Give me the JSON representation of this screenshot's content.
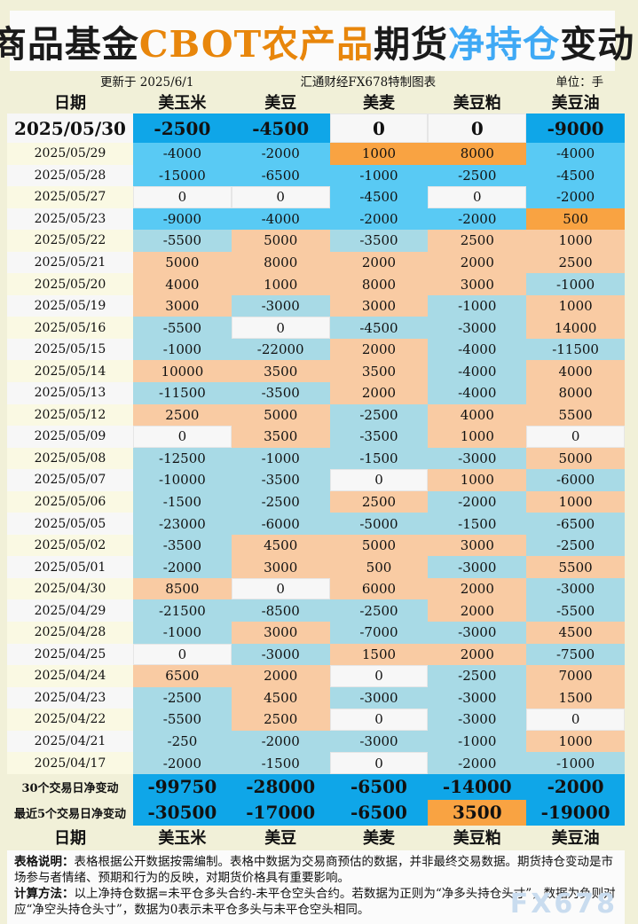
{
  "page": {
    "title_parts": [
      {
        "text": "商品基金",
        "color": "#1A1A1A"
      },
      {
        "text": "CBOT农产品",
        "color": "#E8860B"
      },
      {
        "text": "期货",
        "color": "#1A1A1A"
      },
      {
        "text": "净持仓",
        "color": "#3FA9F5"
      },
      {
        "text": "变动",
        "color": "#1A1A1A"
      }
    ],
    "updated": "更新于 2025/6/1",
    "source": "汇通财经FX678特制图表",
    "unit": "单位：手",
    "watermark": "FX678"
  },
  "colors": {
    "page_background": "#F1F0D8",
    "panel_white": "#FBFBFB",
    "latest_blue": "#0FA6E8",
    "recent_blue": "#59CAF4",
    "recent_orange": "#F9A342",
    "older_blue": "#A8DAE6",
    "older_peach": "#F9CBA3",
    "zero_cell": "#F7F7F7",
    "title_orange": "#E8860B",
    "title_blue": "#3FA9F5"
  },
  "notes": {
    "line1_label": "表格说明：",
    "line1": "表格根据公开数据按需编制。表格中数据为交易商预估的数据，并非最终交易数据。期货持仓变动是市场参与者情绪、预期和行为的反映，对期货价格具有重要影响。",
    "line2_label": "计算方法：",
    "line2": "以上净持仓数据=未平仓多头合约-未平仓空头合约。若数据为正则为“净多头持仓头寸”，数据为负则对应“净空头持仓头寸”，数据为0表示未平仓多头与未平仓空头相同。"
  },
  "chart_data": {
    "type": "table",
    "title": "商品基金CBOT农产品期货净持仓变动",
    "unit": "手",
    "columns": [
      "日期",
      "美玉米",
      "美豆",
      "美麦",
      "美豆粕",
      "美豆油"
    ],
    "dates": [
      "2025/05/30",
      "2025/05/29",
      "2025/05/28",
      "2025/05/27",
      "2025/05/23",
      "2025/05/22",
      "2025/05/21",
      "2025/05/20",
      "2025/05/19",
      "2025/05/16",
      "2025/05/15",
      "2025/05/14",
      "2025/05/13",
      "2025/05/12",
      "2025/05/09",
      "2025/05/08",
      "2025/05/07",
      "2025/05/06",
      "2025/05/05",
      "2025/05/02",
      "2025/05/01",
      "2025/04/30",
      "2025/04/29",
      "2025/04/28",
      "2025/04/25",
      "2025/04/24",
      "2025/04/23",
      "2025/04/22",
      "2025/04/21",
      "2025/04/17"
    ],
    "series": [
      {
        "name": "美玉米",
        "values": [
          -2500,
          -4000,
          -15000,
          0,
          -9000,
          -5500,
          5000,
          4000,
          3000,
          -5500,
          -1000,
          10000,
          -11500,
          2500,
          0,
          -12500,
          -10000,
          -1500,
          -23000,
          -3500,
          -2000,
          8500,
          -21500,
          -1000,
          0,
          6500,
          -2500,
          -5500,
          -250,
          -2000
        ]
      },
      {
        "name": "美豆",
        "values": [
          -4500,
          -2000,
          -6500,
          0,
          -4000,
          5000,
          8000,
          1000,
          -3000,
          0,
          -22000,
          3500,
          -3500,
          5000,
          3500,
          -1000,
          -3500,
          -2500,
          -6000,
          4500,
          3000,
          0,
          -8500,
          3000,
          -3000,
          2000,
          4500,
          2500,
          -2000,
          -1500
        ]
      },
      {
        "name": "美麦",
        "values": [
          0,
          1000,
          -1000,
          -4500,
          -2000,
          -3500,
          2000,
          8000,
          3000,
          -4500,
          2000,
          3500,
          2000,
          -2500,
          -3500,
          -1500,
          0,
          2500,
          -5000,
          5000,
          500,
          6000,
          -2500,
          -7000,
          1500,
          0,
          -3000,
          0,
          -3000,
          0
        ]
      },
      {
        "name": "美豆粕",
        "values": [
          0,
          8000,
          -2500,
          0,
          -2000,
          2500,
          2000,
          3000,
          -1000,
          -3000,
          -4000,
          -4000,
          -4000,
          4000,
          1000,
          -3000,
          1000,
          -2000,
          -1500,
          3000,
          -3000,
          2000,
          2000,
          -3000,
          2000,
          -2500,
          -3000,
          -3000,
          -1000,
          -2000
        ]
      },
      {
        "name": "美豆油",
        "values": [
          -9000,
          -4000,
          -4500,
          -2000,
          500,
          1000,
          2500,
          -1000,
          1000,
          14000,
          -11500,
          4000,
          8000,
          5500,
          0,
          5000,
          -6000,
          1000,
          -6500,
          -2500,
          5500,
          -3000,
          -5500,
          4500,
          -7500,
          7000,
          1500,
          0,
          1000,
          -1000
        ]
      }
    ],
    "summary": [
      {
        "label": "30个交易日净变动",
        "values": [
          -99750,
          -28000,
          -6500,
          -14000,
          -2000
        ]
      },
      {
        "label": "最近5个交易日净变动",
        "values": [
          -30500,
          -17000,
          -6500,
          3500,
          -19000
        ]
      }
    ],
    "footer_columns": [
      "日期",
      "美玉米",
      "美豆",
      "美麦",
      "美豆粕",
      "美豆油"
    ]
  }
}
